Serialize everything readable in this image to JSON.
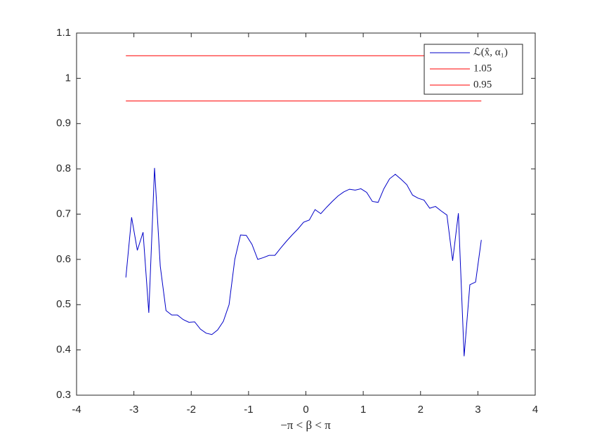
{
  "chart_data": {
    "type": "line",
    "xlabel": "−π < β < π",
    "xlim": [
      -4,
      4
    ],
    "xticks": [
      -4,
      -3,
      -2,
      -1,
      0,
      1,
      2,
      3,
      4
    ],
    "ylim": [
      0.3,
      1.1
    ],
    "yticks": [
      0.3,
      0.4,
      0.5,
      0.6,
      0.7,
      0.8,
      0.9,
      1,
      1.1
    ],
    "legend": "top-right",
    "series": [
      {
        "name": "ℒ(x̂, α₁)",
        "color": "#0000c8",
        "x": [
          -3.14,
          -3.04,
          -2.94,
          -2.84,
          -2.74,
          -2.64,
          -2.54,
          -2.44,
          -2.34,
          -2.24,
          -2.14,
          -2.04,
          -1.94,
          -1.84,
          -1.74,
          -1.64,
          -1.54,
          -1.44,
          -1.34,
          -1.24,
          -1.14,
          -1.04,
          -0.94,
          -0.84,
          -0.74,
          -0.64,
          -0.54,
          -0.44,
          -0.34,
          -0.24,
          -0.14,
          -0.04,
          0.06,
          0.16,
          0.26,
          0.36,
          0.46,
          0.56,
          0.66,
          0.76,
          0.86,
          0.96,
          1.06,
          1.16,
          1.26,
          1.36,
          1.46,
          1.56,
          1.66,
          1.76,
          1.86,
          1.96,
          2.06,
          2.16,
          2.26,
          2.36,
          2.46,
          2.56,
          2.66,
          2.76,
          2.86,
          2.96,
          3.06
        ],
        "values": [
          0.56,
          0.693,
          0.62,
          0.66,
          0.482,
          0.802,
          0.585,
          0.487,
          0.477,
          0.477,
          0.467,
          0.461,
          0.462,
          0.446,
          0.437,
          0.434,
          0.444,
          0.463,
          0.5,
          0.6,
          0.654,
          0.653,
          0.633,
          0.6,
          0.604,
          0.609,
          0.609,
          0.625,
          0.64,
          0.654,
          0.667,
          0.682,
          0.687,
          0.71,
          0.701,
          0.715,
          0.728,
          0.74,
          0.749,
          0.755,
          0.753,
          0.756,
          0.748,
          0.728,
          0.726,
          0.756,
          0.778,
          0.788,
          0.777,
          0.765,
          0.742,
          0.735,
          0.731,
          0.713,
          0.717,
          0.707,
          0.698,
          0.597,
          0.702,
          0.386,
          0.544,
          0.55,
          0.643
        ]
      },
      {
        "name": "1.05",
        "color": "#ff0000",
        "x": [
          -3.14,
          3.06
        ],
        "values": [
          1.05,
          1.05
        ]
      },
      {
        "name": "0.95",
        "color": "#ff0000",
        "x": [
          -3.14,
          3.06
        ],
        "values": [
          0.95,
          0.95
        ]
      }
    ]
  }
}
